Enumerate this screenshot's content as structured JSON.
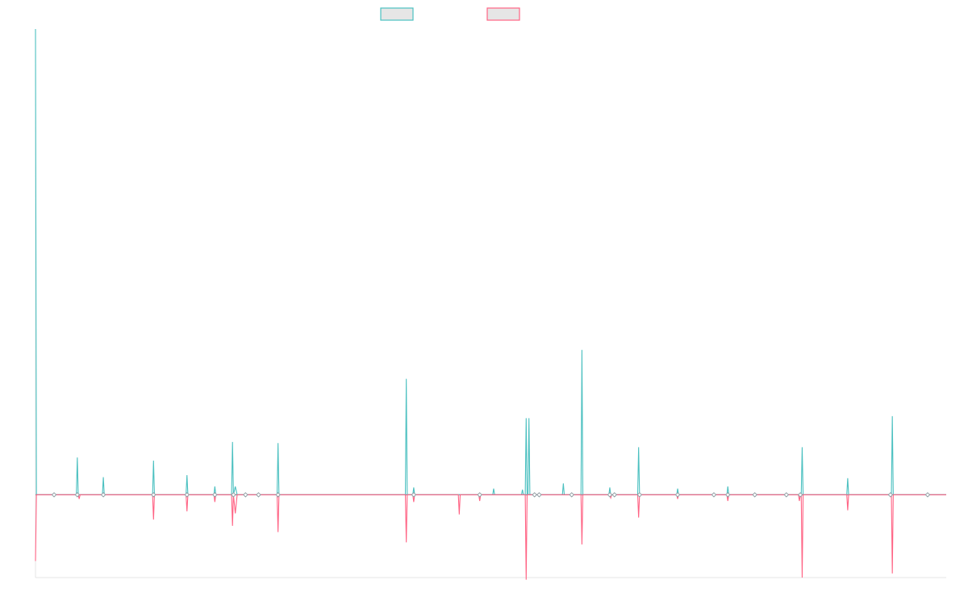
{
  "chart_data": {
    "type": "line",
    "title": "",
    "xlabel": "",
    "ylabel": "",
    "legend": "top-center",
    "grid": false,
    "x_range": [
      0,
      98
    ],
    "ylim": [
      -40,
      225
    ],
    "series": [
      {
        "name": "",
        "color": "#4bc0c0",
        "points": [
          [
            0.0,
            225
          ],
          [
            0.1,
            0
          ],
          [
            2.0,
            0
          ],
          [
            4.4,
            0
          ],
          [
            4.5,
            18
          ],
          [
            4.6,
            0
          ],
          [
            7.2,
            0
          ],
          [
            7.3,
            8.5
          ],
          [
            7.4,
            0
          ],
          [
            12.6,
            0
          ],
          [
            12.7,
            16.5
          ],
          [
            12.8,
            0
          ],
          [
            16.2,
            0
          ],
          [
            16.3,
            9.5
          ],
          [
            16.4,
            0
          ],
          [
            19.2,
            0
          ],
          [
            19.3,
            4
          ],
          [
            19.4,
            0
          ],
          [
            21.1,
            0
          ],
          [
            21.2,
            25.5
          ],
          [
            21.3,
            0
          ],
          [
            21.5,
            4
          ],
          [
            21.7,
            0
          ],
          [
            26.0,
            0
          ],
          [
            26.1,
            25
          ],
          [
            26.2,
            0
          ],
          [
            39.8,
            0
          ],
          [
            39.9,
            56
          ],
          [
            40.0,
            0
          ],
          [
            40.6,
            0
          ],
          [
            40.7,
            3.5
          ],
          [
            40.8,
            0
          ],
          [
            49.2,
            0
          ],
          [
            49.3,
            3
          ],
          [
            49.4,
            0
          ],
          [
            52.3,
            0
          ],
          [
            52.4,
            2.5
          ],
          [
            52.5,
            0
          ],
          [
            52.7,
            0
          ],
          [
            52.8,
            37
          ],
          [
            52.9,
            0
          ],
          [
            53.0,
            0
          ],
          [
            53.1,
            37
          ],
          [
            53.2,
            0
          ],
          [
            56.7,
            0
          ],
          [
            56.8,
            5.5
          ],
          [
            56.9,
            0
          ],
          [
            58.7,
            0
          ],
          [
            58.8,
            70
          ],
          [
            58.9,
            0
          ],
          [
            61.7,
            0
          ],
          [
            61.8,
            3.5
          ],
          [
            61.9,
            0
          ],
          [
            64.8,
            0
          ],
          [
            64.9,
            23
          ],
          [
            65.0,
            0
          ],
          [
            69.0,
            0
          ],
          [
            69.1,
            3
          ],
          [
            69.2,
            0
          ],
          [
            74.4,
            0
          ],
          [
            74.5,
            4
          ],
          [
            74.6,
            0
          ],
          [
            82.4,
            0
          ],
          [
            82.5,
            23
          ],
          [
            82.6,
            0
          ],
          [
            87.3,
            0
          ],
          [
            87.4,
            8
          ],
          [
            87.5,
            0
          ],
          [
            92.1,
            0
          ],
          [
            92.2,
            38
          ],
          [
            92.3,
            0
          ],
          [
            98.0,
            0
          ]
        ]
      },
      {
        "name": "",
        "color": "#ff6384",
        "points": [
          [
            0.0,
            -32
          ],
          [
            0.1,
            0
          ],
          [
            4.6,
            0
          ],
          [
            4.7,
            -2
          ],
          [
            4.8,
            0
          ],
          [
            12.6,
            0
          ],
          [
            12.7,
            -12
          ],
          [
            12.8,
            0
          ],
          [
            16.2,
            0
          ],
          [
            16.3,
            -8
          ],
          [
            16.4,
            0
          ],
          [
            19.2,
            0
          ],
          [
            19.3,
            -3.5
          ],
          [
            19.4,
            0
          ],
          [
            21.1,
            0
          ],
          [
            21.2,
            -15
          ],
          [
            21.3,
            0
          ],
          [
            21.5,
            -9
          ],
          [
            21.7,
            0
          ],
          [
            26.0,
            0
          ],
          [
            26.1,
            -18
          ],
          [
            26.2,
            0
          ],
          [
            39.8,
            0
          ],
          [
            39.9,
            -23
          ],
          [
            40.0,
            0
          ],
          [
            40.6,
            0
          ],
          [
            40.7,
            -3.5
          ],
          [
            40.8,
            0
          ],
          [
            45.5,
            0
          ],
          [
            45.6,
            -9.5
          ],
          [
            45.7,
            0
          ],
          [
            47.7,
            0
          ],
          [
            47.8,
            -3
          ],
          [
            47.9,
            0
          ],
          [
            52.7,
            0
          ],
          [
            52.8,
            -41
          ],
          [
            52.9,
            0
          ],
          [
            58.7,
            0
          ],
          [
            58.8,
            -24
          ],
          [
            58.9,
            0
          ],
          [
            61.8,
            0
          ],
          [
            61.9,
            -1.5
          ],
          [
            62.0,
            0
          ],
          [
            64.8,
            0
          ],
          [
            64.9,
            -11
          ],
          [
            65.0,
            0
          ],
          [
            69.0,
            0
          ],
          [
            69.1,
            -2
          ],
          [
            69.2,
            0
          ],
          [
            74.4,
            0
          ],
          [
            74.5,
            -3
          ],
          [
            74.6,
            0
          ],
          [
            82.1,
            0
          ],
          [
            82.2,
            -3
          ],
          [
            82.3,
            0
          ],
          [
            82.4,
            0
          ],
          [
            82.5,
            -40
          ],
          [
            82.6,
            0
          ],
          [
            87.3,
            0
          ],
          [
            87.4,
            -7.5
          ],
          [
            87.5,
            0
          ],
          [
            92.1,
            0
          ],
          [
            92.2,
            -38
          ],
          [
            92.3,
            0
          ],
          [
            98.0,
            0
          ]
        ]
      }
    ],
    "markers": [
      {
        "x": 2.0,
        "y": 0
      },
      {
        "x": 4.5,
        "y": 0
      },
      {
        "x": 7.3,
        "y": 0
      },
      {
        "x": 12.7,
        "y": 0
      },
      {
        "x": 16.3,
        "y": 0
      },
      {
        "x": 19.3,
        "y": 0
      },
      {
        "x": 21.3,
        "y": 0
      },
      {
        "x": 22.6,
        "y": 0
      },
      {
        "x": 24.0,
        "y": 0
      },
      {
        "x": 26.1,
        "y": 0
      },
      {
        "x": 40.7,
        "y": 0
      },
      {
        "x": 47.8,
        "y": 0
      },
      {
        "x": 53.7,
        "y": 0
      },
      {
        "x": 54.2,
        "y": 0
      },
      {
        "x": 57.7,
        "y": 0
      },
      {
        "x": 61.8,
        "y": 0
      },
      {
        "x": 62.3,
        "y": 0
      },
      {
        "x": 65.0,
        "y": 0
      },
      {
        "x": 69.1,
        "y": 0
      },
      {
        "x": 73.0,
        "y": 0
      },
      {
        "x": 74.5,
        "y": 0
      },
      {
        "x": 77.4,
        "y": 0
      },
      {
        "x": 80.8,
        "y": 0
      },
      {
        "x": 82.3,
        "y": 0
      },
      {
        "x": 92.0,
        "y": 0
      },
      {
        "x": 96.0,
        "y": 0
      }
    ]
  }
}
